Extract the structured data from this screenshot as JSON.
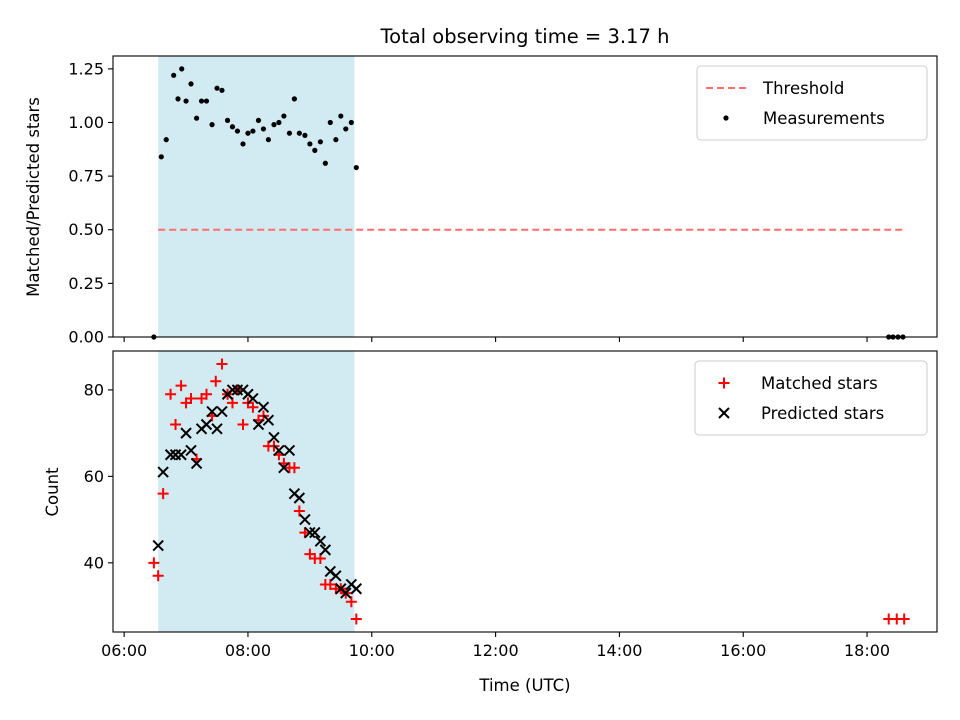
{
  "chart_data": {
    "title": "Total observing time = 3.17 h",
    "xlabel": "Time (UTC)",
    "x_unit": "hours UTC",
    "xlim": [
      5.82,
      19.13
    ],
    "xticks": [
      {
        "value": 6,
        "label": "06:00"
      },
      {
        "value": 8,
        "label": "08:00"
      },
      {
        "value": 10,
        "label": "10:00"
      },
      {
        "value": 12,
        "label": "12:00"
      },
      {
        "value": 14,
        "label": "14:00"
      },
      {
        "value": 16,
        "label": "16:00"
      },
      {
        "value": 18,
        "label": "18:00"
      }
    ],
    "observing_window": {
      "start": 6.55,
      "end": 9.72,
      "color": "#add8e6"
    },
    "panels": [
      {
        "type": "scatter",
        "ylabel": "Matched/Predicted stars",
        "ylim": [
          0,
          1.31
        ],
        "yticks": [
          {
            "value": 0,
            "label": "0.00"
          },
          {
            "value": 0.25,
            "label": "0.25"
          },
          {
            "value": 0.5,
            "label": "0.50"
          },
          {
            "value": 0.75,
            "label": "0.75"
          },
          {
            "value": 1.0,
            "label": "1.00"
          },
          {
            "value": 1.25,
            "label": "1.25"
          }
        ],
        "legend": {
          "position": "top-right"
        },
        "threshold": {
          "name": "Threshold",
          "value": 0.5,
          "x_range": [
            6.55,
            18.6
          ],
          "color": "#ff6e6e"
        },
        "series": [
          {
            "name": "Measurements",
            "marker": "dot",
            "color": "#000000",
            "points": [
              [
                6.48,
                0.0
              ],
              [
                6.6,
                0.84
              ],
              [
                6.68,
                0.92
              ],
              [
                6.8,
                1.22
              ],
              [
                6.87,
                1.11
              ],
              [
                6.93,
                1.25
              ],
              [
                7.0,
                1.1
              ],
              [
                7.08,
                1.18
              ],
              [
                7.17,
                1.02
              ],
              [
                7.25,
                1.1
              ],
              [
                7.33,
                1.1
              ],
              [
                7.42,
                0.99
              ],
              [
                7.5,
                1.16
              ],
              [
                7.58,
                1.15
              ],
              [
                7.67,
                1.01
              ],
              [
                7.75,
                0.98
              ],
              [
                7.83,
                0.96
              ],
              [
                7.92,
                0.9
              ],
              [
                8.0,
                0.95
              ],
              [
                8.08,
                0.96
              ],
              [
                8.17,
                1.01
              ],
              [
                8.25,
                0.97
              ],
              [
                8.33,
                0.92
              ],
              [
                8.42,
                0.99
              ],
              [
                8.5,
                1.0
              ],
              [
                8.58,
                1.03
              ],
              [
                8.67,
                0.95
              ],
              [
                8.75,
                1.11
              ],
              [
                8.83,
                0.95
              ],
              [
                8.92,
                0.94
              ],
              [
                9.0,
                0.9
              ],
              [
                9.08,
                0.87
              ],
              [
                9.17,
                0.91
              ],
              [
                9.25,
                0.81
              ],
              [
                9.33,
                1.0
              ],
              [
                9.42,
                0.92
              ],
              [
                9.5,
                1.03
              ],
              [
                9.58,
                0.97
              ],
              [
                9.67,
                1.0
              ],
              [
                9.75,
                0.79
              ],
              [
                18.35,
                0.0
              ],
              [
                18.42,
                0.0
              ],
              [
                18.5,
                0.0
              ],
              [
                18.58,
                0.0
              ]
            ]
          }
        ]
      },
      {
        "type": "scatter",
        "ylabel": "Count",
        "ylim": [
          24,
          89
        ],
        "yticks": [
          {
            "value": 40,
            "label": "40"
          },
          {
            "value": 60,
            "label": "60"
          },
          {
            "value": 80,
            "label": "80"
          }
        ],
        "legend": {
          "position": "top-right"
        },
        "series": [
          {
            "name": "Matched stars",
            "marker": "plus",
            "color": "#ff0000",
            "points": [
              [
                6.48,
                40
              ],
              [
                6.55,
                37
              ],
              [
                6.63,
                56
              ],
              [
                6.75,
                79
              ],
              [
                6.83,
                72
              ],
              [
                6.92,
                81
              ],
              [
                7.0,
                77
              ],
              [
                7.08,
                78
              ],
              [
                7.17,
                64
              ],
              [
                7.25,
                78
              ],
              [
                7.33,
                79
              ],
              [
                7.42,
                74
              ],
              [
                7.48,
                82
              ],
              [
                7.58,
                86
              ],
              [
                7.67,
                79
              ],
              [
                7.75,
                77
              ],
              [
                7.83,
                80
              ],
              [
                7.92,
                72
              ],
              [
                8.0,
                77
              ],
              [
                8.08,
                76
              ],
              [
                8.17,
                73
              ],
              [
                8.25,
                74
              ],
              [
                8.33,
                67
              ],
              [
                8.42,
                67
              ],
              [
                8.5,
                65
              ],
              [
                8.58,
                63
              ],
              [
                8.67,
                62
              ],
              [
                8.75,
                62
              ],
              [
                8.83,
                52
              ],
              [
                8.92,
                47
              ],
              [
                9.0,
                42
              ],
              [
                9.08,
                41
              ],
              [
                9.17,
                41
              ],
              [
                9.25,
                35
              ],
              [
                9.33,
                35
              ],
              [
                9.42,
                34
              ],
              [
                9.5,
                34
              ],
              [
                9.58,
                33
              ],
              [
                9.67,
                31
              ],
              [
                9.75,
                27
              ],
              [
                18.35,
                27
              ],
              [
                18.48,
                27
              ],
              [
                18.6,
                27
              ]
            ]
          },
          {
            "name": "Predicted stars",
            "marker": "x",
            "color": "#000000",
            "points": [
              [
                6.55,
                44
              ],
              [
                6.63,
                61
              ],
              [
                6.75,
                65
              ],
              [
                6.83,
                65
              ],
              [
                6.92,
                65
              ],
              [
                7.0,
                70
              ],
              [
                7.08,
                66
              ],
              [
                7.17,
                63
              ],
              [
                7.25,
                71
              ],
              [
                7.33,
                72
              ],
              [
                7.42,
                75
              ],
              [
                7.5,
                71
              ],
              [
                7.58,
                75
              ],
              [
                7.67,
                79
              ],
              [
                7.75,
                80
              ],
              [
                7.83,
                80
              ],
              [
                7.92,
                80
              ],
              [
                8.0,
                79
              ],
              [
                8.08,
                78
              ],
              [
                8.17,
                72
              ],
              [
                8.25,
                76
              ],
              [
                8.33,
                73
              ],
              [
                8.42,
                69
              ],
              [
                8.5,
                66
              ],
              [
                8.58,
                62
              ],
              [
                8.67,
                66
              ],
              [
                8.75,
                56
              ],
              [
                8.83,
                55
              ],
              [
                8.92,
                50
              ],
              [
                9.0,
                47
              ],
              [
                9.08,
                47
              ],
              [
                9.17,
                45
              ],
              [
                9.25,
                43
              ],
              [
                9.33,
                38
              ],
              [
                9.42,
                37
              ],
              [
                9.5,
                34
              ],
              [
                9.58,
                33
              ],
              [
                9.67,
                35
              ],
              [
                9.75,
                34
              ]
            ]
          }
        ]
      }
    ]
  }
}
